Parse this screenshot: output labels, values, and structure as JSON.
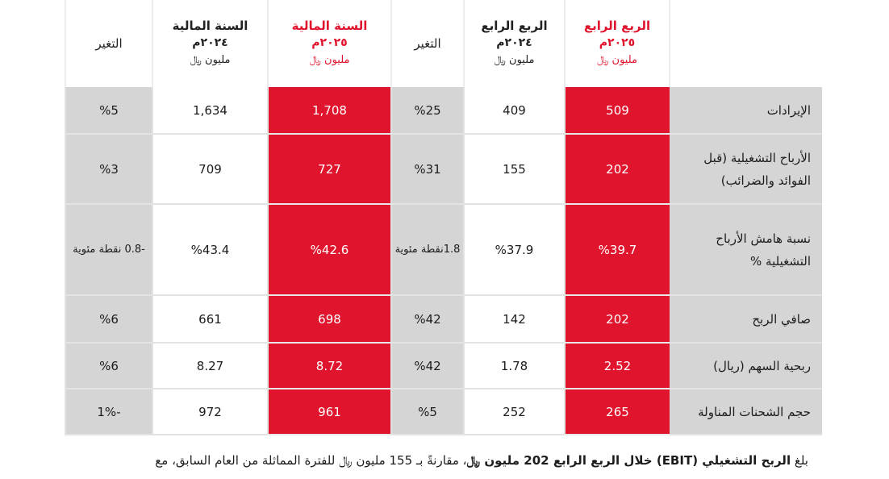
{
  "columns": {
    "q4_2025": {
      "line1": "الربع الرابع",
      "line2": "٢٠٢٥م",
      "unit": "مليون ﷼"
    },
    "q4_2024": {
      "line1": "الربع الرابع",
      "line2": "٢٠٢٤م",
      "unit": "مليون ﷼"
    },
    "q_change": "التغير",
    "fy_2025": {
      "line1": "السنة المالية",
      "line2": "٢٠٢٥م",
      "unit": "مليون ﷼"
    },
    "fy_2024": {
      "line1": "السنة المالية",
      "line2": "٢٠٢٤م",
      "unit": "مليون ﷼"
    },
    "fy_change": "التغير"
  },
  "rows": [
    {
      "label": "الإيرادات",
      "q4_2025": "509",
      "q4_2024": "409",
      "q_change": "%25",
      "fy_2025": "1,708",
      "fy_2024": "1,634",
      "fy_change": "%5"
    },
    {
      "label": "الأرباح التشغيلية (قبل الفوائد والضرائب)",
      "q4_2025": "202",
      "q4_2024": "155",
      "q_change": "%31",
      "fy_2025": "727",
      "fy_2024": "709",
      "fy_change": "%3"
    },
    {
      "label": "نسبة هامش الأرباح التشغيلية %",
      "q4_2025": "%39.7",
      "q4_2024": "%37.9",
      "q_change": "1.8نقطة مئوية",
      "fy_2025": "%42.6",
      "fy_2024": "%43.4",
      "fy_change": "-0.8 نقطة مئوية"
    },
    {
      "label": "صافي الربح",
      "q4_2025": "202",
      "q4_2024": "142",
      "q_change": "%42",
      "fy_2025": "698",
      "fy_2024": "661",
      "fy_change": "%6"
    },
    {
      "label": "ربحية السهم (ريال)",
      "q4_2025": "2.52",
      "q4_2024": "1.78",
      "q_change": "%42",
      "fy_2025": "8.72",
      "fy_2024": "8.27",
      "fy_change": "%6"
    },
    {
      "label": "حجم الشحنات المناولة",
      "q4_2025": "265",
      "q4_2024": "252",
      "q_change": "%5",
      "fy_2025": "961",
      "fy_2024": "972",
      "fy_change": "-1%"
    }
  ],
  "footnote": {
    "part1": "بلغ ",
    "bold1": "الربح التشغيلي (EBIT) خلال الربع الرابع 202 مليون ﷼",
    "part2": "، مقارنةً بـ 155 مليون ﷼ للفترة المماثلة من العام السابق، مع"
  },
  "colors": {
    "highlight_red": "#e0142c",
    "label_gray": "#d5d5d5",
    "change_gray": "#d5d5d5"
  }
}
